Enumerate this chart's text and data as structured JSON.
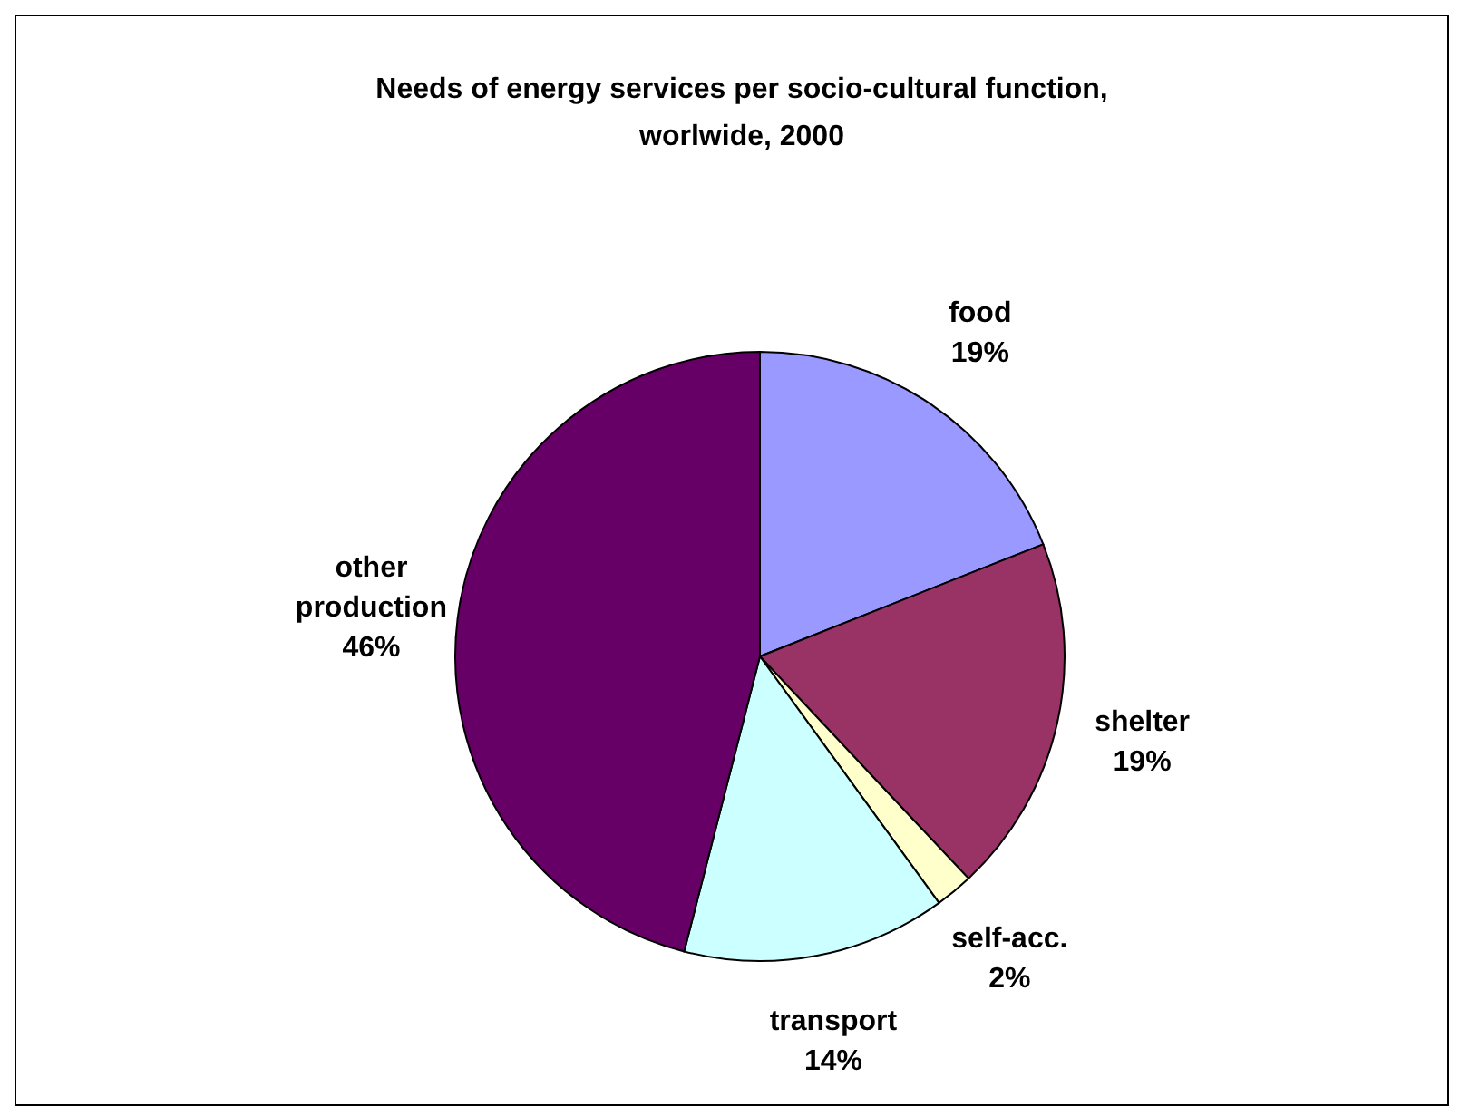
{
  "chart_data": {
    "type": "pie",
    "title": "Needs of energy services per socio-cultural function, worlwide, 2000",
    "categories": [
      "food",
      "shelter",
      "self-acc.",
      "transport",
      "other production"
    ],
    "values": [
      19,
      19,
      2,
      14,
      46
    ],
    "colors": [
      "#9999ff",
      "#993366",
      "#ffffcc",
      "#ccffff",
      "#660066"
    ],
    "value_labels": [
      "19%",
      "19%",
      "2%",
      "14%",
      "46%"
    ],
    "legend": false
  }
}
